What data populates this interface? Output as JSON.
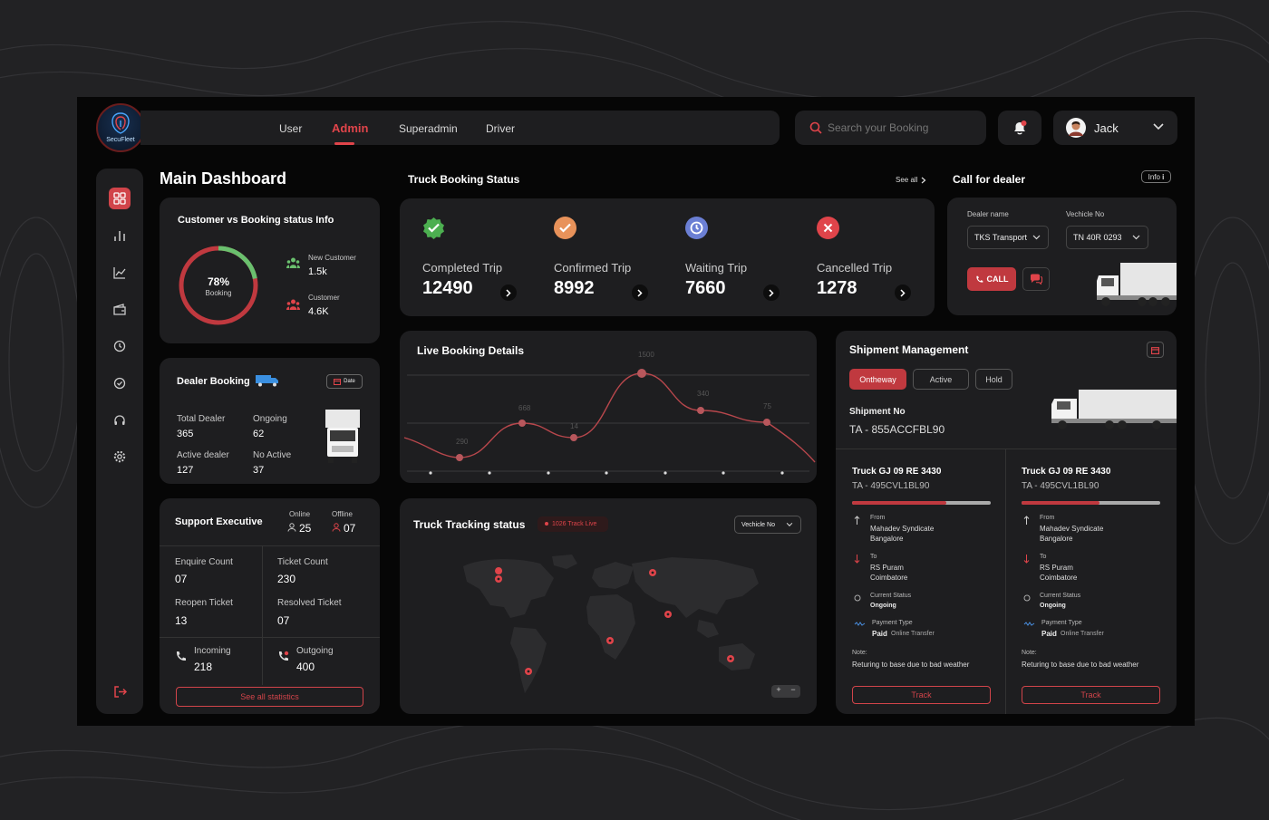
{
  "brand": {
    "logo_text": "SecuFleet"
  },
  "nav": {
    "tabs": [
      {
        "label": "User"
      },
      {
        "label": "Admin"
      },
      {
        "label": "Superadmin"
      },
      {
        "label": "Driver"
      }
    ],
    "active": "Admin"
  },
  "search": {
    "placeholder": "Search your Booking"
  },
  "user": {
    "name": "Jack"
  },
  "main": {
    "title": "Main Dashboard"
  },
  "customer_info": {
    "title": "Customer vs Booking status Info",
    "percent": 78,
    "percent_label": "78%",
    "center_label": "Booking",
    "new_customer_label": "New Customer",
    "new_customer_value": "1.5k",
    "customer_label": "Customer",
    "customer_value": "4.6K"
  },
  "dealer_booking": {
    "title": "Dealer Booking",
    "date_label": "Date",
    "total_dealer_label": "Total Dealer",
    "total_dealer_value": "365",
    "ongoing_label": "Ongoing",
    "ongoing_value": "62",
    "active_dealer_label": "Active dealer",
    "active_dealer_value": "127",
    "no_active_label": "No Active",
    "no_active_value": "37"
  },
  "support": {
    "title": "Support Executive",
    "online_label": "Online",
    "online_value": "25",
    "offline_label": "Offline",
    "offline_value": "07",
    "enquire_label": "Enquire Count",
    "enquire_value": "07",
    "ticket_label": "Ticket Count",
    "ticket_value": "230",
    "reopen_label": "Reopen Ticket",
    "reopen_value": "13",
    "resolved_label": "Resolved Ticket",
    "resolved_value": "07",
    "incoming_label": "Incoming",
    "incoming_value": "218",
    "outgoing_label": "Outgoing",
    "outgoing_value": "400",
    "see_all": "See all statistics"
  },
  "truck_status": {
    "title": "Truck Booking Status",
    "see_all": "See all",
    "items": [
      {
        "label": "Completed Trip",
        "value": "12490",
        "color": "#4caf50",
        "icon": "check-icon"
      },
      {
        "label": "Confirmed Trip",
        "value": "8992",
        "color": "#e8925a",
        "icon": "check-icon"
      },
      {
        "label": "Waiting Trip",
        "value": "7660",
        "color": "#6b7fd4",
        "icon": "clock-icon"
      },
      {
        "label": "Cancelled Trip",
        "value": "1278",
        "color": "#e0444a",
        "icon": "close-icon"
      }
    ]
  },
  "dealer_call": {
    "title": "Call  for dealer",
    "info": "Info",
    "dealer_name_label": "Dealer name",
    "dealer_name_value": "TKS Transport",
    "vehicle_label": "Vechicle No",
    "vehicle_value": "TN 40R 0293",
    "call_label": "CALL"
  },
  "live_booking": {
    "title": "Live Booking Details"
  },
  "chart_data": {
    "type": "line",
    "title": "Live Booking Details",
    "series": [
      {
        "values": [
          290,
          668,
          14,
          1500,
          340,
          75
        ]
      }
    ],
    "data_labels": [
      "290",
      "668",
      "14",
      "1500",
      "340",
      "75"
    ],
    "grid": true
  },
  "tracking": {
    "title": "Truck Tracking status",
    "badge": "1026 Track Live",
    "vehicle_label": "Vechicle No",
    "zoom_in": "+",
    "zoom_out": "−"
  },
  "shipment": {
    "title": "Shipment Management",
    "tabs": [
      "Ontheway",
      "Active",
      "Hold"
    ],
    "shipment_no_label": "Shipment No",
    "shipment_no": "TA - 855ACCFBL90",
    "trucks": [
      {
        "name": "Truck GJ 09 RE 3430",
        "code": "TA - 495CVL1BL90",
        "progress": 0.68,
        "from_label": "From",
        "from_line1": "Mahadev Syndicate",
        "from_line2": "Bangalore",
        "to_label": "To",
        "to_line1": "RS Puram",
        "to_line2": "Coimbatore",
        "status_label": "Current Status",
        "status_value": "Ongoing",
        "payment_label": "Payment Type",
        "payment_value": "Paid",
        "payment_method": "Online Transfer",
        "note_label": "Note:",
        "note_value": "Returing to base due to bad weather",
        "track_label": "Track"
      },
      {
        "name": "Truck GJ 09 RE 3430",
        "code": "TA - 495CVL1BL90",
        "progress": 0.56,
        "from_label": "From",
        "from_line1": "Mahadev Syndicate",
        "from_line2": "Bangalore",
        "to_label": "To",
        "to_line1": "RS Puram",
        "to_line2": "Coimbatore",
        "status_label": "Current Status",
        "status_value": "Ongoing",
        "payment_label": "Payment Type",
        "payment_value": "Paid",
        "payment_method": "Online Transfer",
        "note_label": "Note:",
        "note_value": "Returing to base due to bad weather",
        "track_label": "Track"
      }
    ]
  }
}
